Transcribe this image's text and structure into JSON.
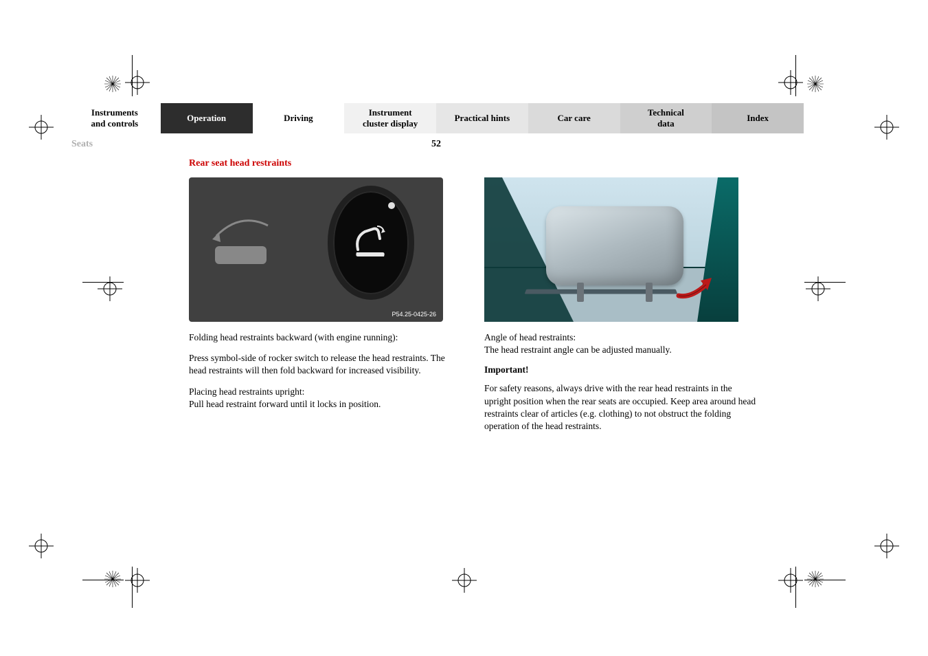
{
  "nav": {
    "tabs": [
      {
        "label": "Instruments\nand controls"
      },
      {
        "label": "Operation"
      },
      {
        "label": "Driving"
      },
      {
        "label": "Instrument\ncluster display"
      },
      {
        "label": "Practical hints"
      },
      {
        "label": "Car care"
      },
      {
        "label": "Technical\ndata"
      },
      {
        "label": "Index"
      }
    ]
  },
  "header": {
    "section": "Seats",
    "page_number": "52"
  },
  "subsection_title": "Rear seat head restraints",
  "left_col": {
    "fig_caption": "P54.25-0425-26",
    "para1": "Folding head restraints backward (with engine running):",
    "para2": "Press symbol-side of rocker switch to release the head restraints. The head restraints will then fold backward for increased visibility.",
    "para3": "Placing head restraints upright:\nPull head restraint forward until it locks in position."
  },
  "right_col": {
    "para1": "Angle of head restraints:\nThe head restraint angle can be adjusted manually.",
    "important_label": "Important!",
    "para2": "For safety reasons, always drive with the rear head restraints in the upright position when the rear seats are occupied. Keep area around head restraints clear of articles (e.g. clothing) to not obstruct the folding operation of the head restraints."
  },
  "colors": {
    "heading_red": "#cc0000",
    "active_tab_bg": "#2d2d2d",
    "muted_grey": "#b0b0b0",
    "arrow_red": "#bb1a1a"
  }
}
